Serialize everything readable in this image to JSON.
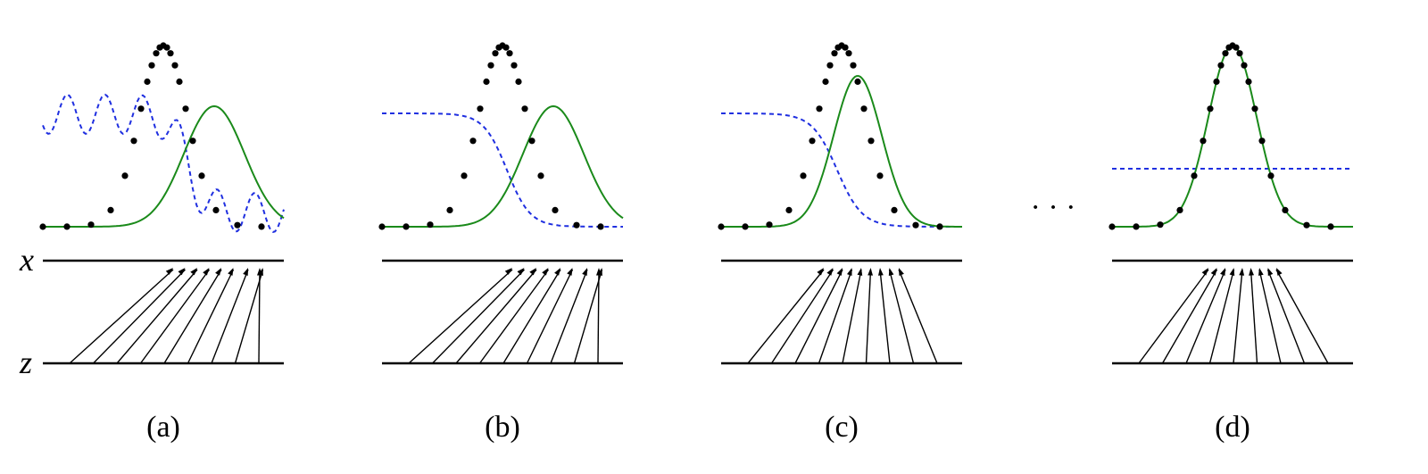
{
  "axis_labels": {
    "x": "x",
    "z": "z"
  },
  "ellipsis": "· · ·",
  "colors": {
    "data": "#000000",
    "generator": "#1a8a1a",
    "discriminator": "#1f2fe0",
    "axis": "#000000"
  },
  "panels": [
    {
      "caption": "(a)",
      "discriminator_shape": "wavy"
    },
    {
      "caption": "(b)",
      "discriminator_shape": "sigmoid"
    },
    {
      "caption": "(c)",
      "discriminator_shape": "sigmoid"
    },
    {
      "caption": "(d)",
      "discriminator_shape": "flat"
    }
  ]
}
